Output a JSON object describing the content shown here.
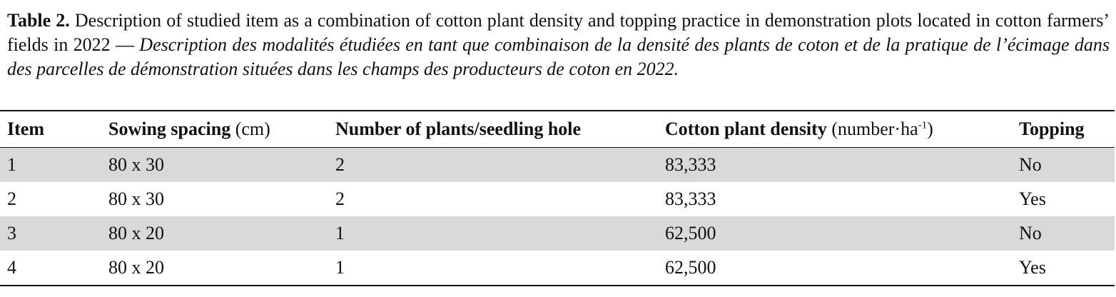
{
  "caption": {
    "label": "Table 2.",
    "english": "Description of studied item as a combination of cotton plant density and topping practice in demonstration plots located in cotton farmers’ fields in 2022",
    "separator": "—",
    "french": "Description des modalités étudiées en tant que combinaison de la densité des plants de coton et de la pratique de l’écimage dans des parcelles de démonstration situées dans les champs des producteurs de coton en 2022."
  },
  "table": {
    "headers": [
      {
        "bold": "Item"
      },
      {
        "bold": "Sowing spacing",
        "unit": "(cm)"
      },
      {
        "bold": "Number of plants/seedling hole"
      },
      {
        "bold": "Cotton plant density",
        "unit": "(number·ha",
        "unit_sup": "-1",
        "unit_end": ")"
      },
      {
        "bold": "Topping"
      }
    ],
    "rows": [
      [
        "1",
        "80 x 30",
        "2",
        "83,333",
        "No"
      ],
      [
        "2",
        "80 x 30",
        "2",
        "83,333",
        "Yes"
      ],
      [
        "3",
        "80 x 20",
        "1",
        "62,500",
        "No"
      ],
      [
        "4",
        "80 x 20",
        "1",
        "62,500",
        "Yes"
      ]
    ]
  }
}
